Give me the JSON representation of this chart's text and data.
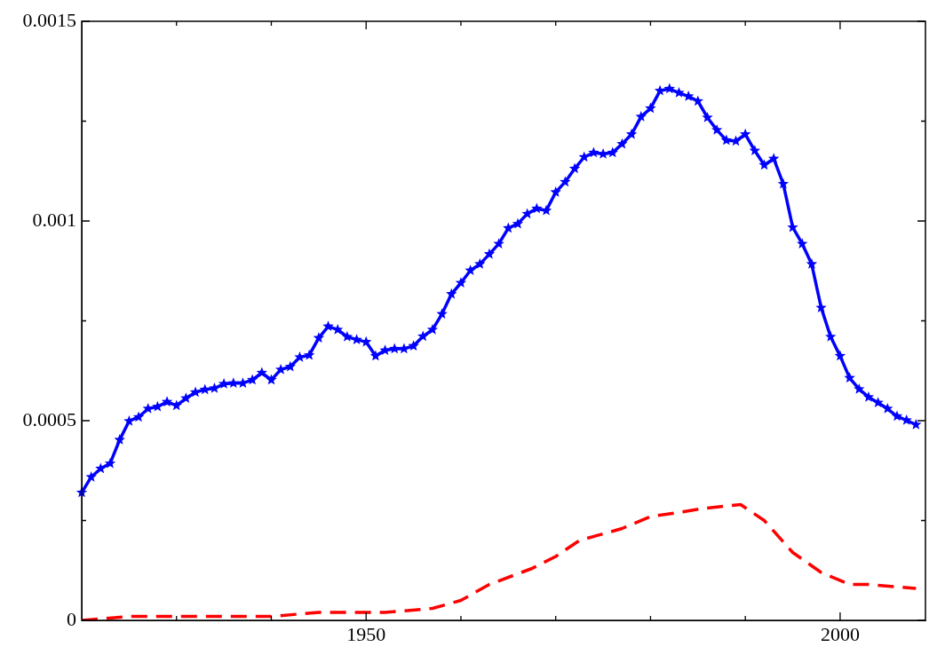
{
  "chart_data": {
    "type": "line",
    "xlim": [
      1920,
      2009
    ],
    "ylim": [
      0,
      0.0015
    ],
    "xticks": [
      {
        "value": 1930,
        "label": null
      },
      {
        "value": 1940,
        "label": null
      },
      1950,
      {
        "value": 1960,
        "label": null
      },
      {
        "value": 1970,
        "label": null
      },
      {
        "value": 1980,
        "label": null
      },
      {
        "value": 1990,
        "label": null
      },
      2000
    ],
    "yticks": [
      0,
      {
        "value": 0.00025,
        "label": null
      },
      0.0005,
      {
        "value": 0.00075,
        "label": null
      },
      0.001,
      {
        "value": 0.00125,
        "label": null
      },
      0.0015
    ],
    "grid": false,
    "legend": false,
    "series": [
      {
        "color": "#0000ff",
        "marker": "star",
        "line_style": "solid",
        "x": [
          1920,
          1921,
          1922,
          1923,
          1924,
          1925,
          1926,
          1927,
          1928,
          1929,
          1930,
          1931,
          1932,
          1933,
          1934,
          1935,
          1936,
          1937,
          1938,
          1939,
          1940,
          1941,
          1942,
          1943,
          1944,
          1945,
          1946,
          1947,
          1948,
          1949,
          1950,
          1951,
          1952,
          1953,
          1954,
          1955,
          1956,
          1957,
          1958,
          1959,
          1960,
          1961,
          1962,
          1963,
          1964,
          1965,
          1966,
          1967,
          1968,
          1969,
          1970,
          1971,
          1972,
          1973,
          1974,
          1975,
          1976,
          1977,
          1978,
          1979,
          1980,
          1981,
          1982,
          1983,
          1984,
          1985,
          1986,
          1987,
          1988,
          1989,
          1990,
          1991,
          1992,
          1993,
          1994,
          1995,
          1996,
          1997,
          1998,
          1999,
          2000,
          2001,
          2002,
          2003,
          2004,
          2005,
          2006,
          2007,
          2008
        ],
        "values": [
          0.00032,
          0.000359,
          0.00038,
          0.000393,
          0.000452,
          0.000499,
          0.000509,
          0.00053,
          0.000535,
          0.000547,
          0.000538,
          0.000556,
          0.000571,
          0.000578,
          0.000581,
          0.000592,
          0.000594,
          0.000594,
          0.000602,
          0.00062,
          0.000602,
          0.000628,
          0.000635,
          0.000659,
          0.000664,
          0.000707,
          0.000736,
          0.000728,
          0.00071,
          0.000703,
          0.000697,
          0.000662,
          0.000676,
          0.00068,
          0.00068,
          0.000687,
          0.000711,
          0.000728,
          0.000767,
          0.000817,
          0.000845,
          0.000876,
          0.000892,
          0.000917,
          0.000943,
          0.000982,
          0.000993,
          0.001018,
          0.001031,
          0.001026,
          0.001072,
          0.001098,
          0.001131,
          0.00116,
          0.001171,
          0.001168,
          0.001171,
          0.001193,
          0.001217,
          0.001261,
          0.001282,
          0.001326,
          0.001331,
          0.001321,
          0.001312,
          0.0013,
          0.001259,
          0.001228,
          0.001202,
          0.0012,
          0.001217,
          0.001176,
          0.00114,
          0.001156,
          0.001093,
          0.000984,
          0.000943,
          0.000892,
          0.000783,
          0.00071,
          0.000662,
          0.000607,
          0.000579,
          0.000559,
          0.000545,
          0.00053,
          0.000511,
          0.000501,
          0.00049
        ]
      },
      {
        "color": "#ff0000",
        "marker": "none",
        "line_style": "dashed",
        "x": [
          1920,
          1925,
          1930,
          1933,
          1935,
          1940,
          1945,
          1950,
          1952,
          1957,
          1960,
          1963,
          1967.5,
          1970,
          1972.5,
          1977,
          1980,
          1983,
          1985.5,
          1989.5,
          1992,
          1995,
          1998,
          2001,
          2003,
          2008
        ],
        "values": [
          0,
          1e-05,
          1e-05,
          1e-05,
          1e-05,
          1e-05,
          2e-05,
          2e-05,
          2e-05,
          3e-05,
          5e-05,
          9e-05,
          0.00013,
          0.00016,
          0.0002,
          0.00023,
          0.00026,
          0.00027,
          0.00028,
          0.00029,
          0.00025,
          0.00017,
          0.00012,
          9e-05,
          9e-05,
          8e-05
        ]
      }
    ]
  }
}
